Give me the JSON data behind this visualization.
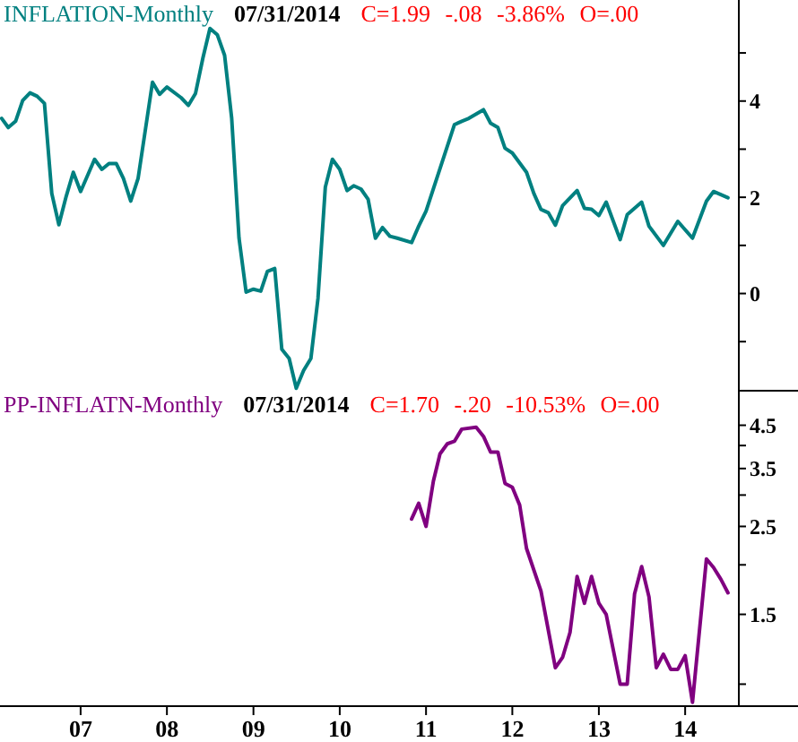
{
  "chart_data": [
    {
      "type": "line",
      "legend": "top left",
      "tick_labels": "y",
      "annotations": [
        "07/31/2014",
        "C=1.99 -.08 -3.86% O=.00"
      ],
      "xlim": [
        "2006-01-25",
        "2014-08-16"
      ],
      "ylim": [
        -2.02,
        6.1
      ],
      "yticks": [
        {
          "value": 5,
          "label": null
        },
        4,
        {
          "value": 3,
          "label": null
        },
        2,
        {
          "value": 1,
          "label": null
        },
        0,
        {
          "value": -1,
          "label": null
        }
      ],
      "series": [
        {
          "name": "INFLATION-Monthly",
          "color": "#008080",
          "x": [
            "2006-02",
            "2006-03",
            "2006-04",
            "2006-05",
            "2006-06",
            "2006-07",
            "2006-08",
            "2006-09",
            "2006-10",
            "2006-11",
            "2006-12",
            "2007-01",
            "2007-03",
            "2007-04",
            "2007-05",
            "2007-06",
            "2007-07",
            "2007-08",
            "2007-09",
            "2007-11",
            "2007-12",
            "2008-01",
            "2008-03",
            "2008-04",
            "2008-05",
            "2008-06",
            "2008-07",
            "2008-08",
            "2008-09",
            "2008-10",
            "2008-11",
            "2008-12",
            "2009-01",
            "2009-02",
            "2009-03",
            "2009-04",
            "2009-05",
            "2009-06",
            "2009-07",
            "2009-08",
            "2009-09",
            "2009-10",
            "2009-11",
            "2009-12",
            "2010-01",
            "2010-02",
            "2010-03",
            "2010-04",
            "2010-05",
            "2010-06",
            "2010-07",
            "2010-08",
            "2010-09",
            "2010-11",
            "2010-12",
            "2011-01",
            "2011-05",
            "2011-06",
            "2011-07",
            "2011-09",
            "2011-10",
            "2011-11",
            "2011-12",
            "2012-01",
            "2012-03",
            "2012-04",
            "2012-05",
            "2012-06",
            "2012-07",
            "2012-08",
            "2012-10",
            "2012-11",
            "2012-12",
            "2013-01",
            "2013-02",
            "2013-04",
            "2013-05",
            "2013-07",
            "2013-08",
            "2013-10",
            "2013-12",
            "2014-02",
            "2014-04",
            "2014-05",
            "2014-07"
          ],
          "values": [
            3.64,
            3.45,
            3.58,
            4.01,
            4.17,
            4.1,
            3.95,
            2.08,
            1.43,
            2.02,
            2.52,
            2.12,
            2.79,
            2.58,
            2.7,
            2.7,
            2.39,
            1.92,
            2.39,
            4.39,
            4.14,
            4.29,
            4.07,
            3.91,
            4.16,
            4.89,
            5.51,
            5.38,
            4.95,
            3.64,
            1.15,
            0.03,
            0.09,
            0.05,
            0.46,
            0.52,
            -1.16,
            -1.35,
            -1.97,
            -1.6,
            -1.35,
            -0.1,
            2.21,
            2.79,
            2.58,
            2.14,
            2.24,
            2.17,
            1.96,
            1.15,
            1.37,
            1.19,
            1.15,
            1.06,
            1.4,
            1.71,
            3.51,
            3.58,
            3.64,
            3.82,
            3.54,
            3.45,
            3.02,
            2.92,
            2.52,
            2.08,
            1.75,
            1.68,
            1.42,
            1.83,
            2.14,
            1.77,
            1.75,
            1.62,
            1.9,
            1.12,
            1.64,
            1.9,
            1.4,
            1.0,
            1.5,
            1.15,
            1.92,
            2.12,
            1.99
          ]
        }
      ]
    },
    {
      "type": "line",
      "legend": "top left",
      "log": "y",
      "annotations": [
        "07/31/2014",
        "C=1.70 -.20 -10.53% O=.00"
      ],
      "xlim": [
        "2006-01-25",
        "2014-08-16"
      ],
      "ylim": [
        0.88,
        5.5
      ],
      "xticks": [
        {
          "value": "2007-01-01",
          "label": "07"
        },
        {
          "value": "2008-01-01",
          "label": "08"
        },
        {
          "value": "2009-01-01",
          "label": "09"
        },
        {
          "value": "2010-01-01",
          "label": "10"
        },
        {
          "value": "2011-01-01",
          "label": "11"
        },
        {
          "value": "2012-01-01",
          "label": "12"
        },
        {
          "value": "2013-01-01",
          "label": "13"
        },
        {
          "value": "2014-01-01",
          "label": "14"
        }
      ],
      "yticks": [
        4.5,
        {
          "value": 4,
          "label": null
        },
        3.5,
        {
          "value": 3,
          "label": null
        },
        2.5,
        {
          "value": 2,
          "label": null
        },
        1.5,
        {
          "value": 1,
          "label": null
        }
      ],
      "series": [
        {
          "name": "PP-INFLATN-Monthly",
          "color": "#800080",
          "x": [
            "2010-11",
            "2010-12",
            "2011-01",
            "2011-02",
            "2011-03",
            "2011-04",
            "2011-05",
            "2011-06",
            "2011-08",
            "2011-09",
            "2011-10",
            "2011-11",
            "2011-12",
            "2012-01",
            "2012-02",
            "2012-03",
            "2012-05",
            "2012-07",
            "2012-08",
            "2012-09",
            "2012-10",
            "2012-11",
            "2012-12",
            "2013-01",
            "2013-02",
            "2013-04",
            "2013-05",
            "2013-06",
            "2013-07",
            "2013-08",
            "2013-09",
            "2013-10",
            "2013-11",
            "2013-12",
            "2014-01",
            "2014-02",
            "2014-04",
            "2014-05",
            "2014-06",
            "2014-07"
          ],
          "values": [
            2.61,
            2.86,
            2.5,
            3.25,
            3.81,
            4.04,
            4.1,
            4.4,
            4.45,
            4.22,
            3.85,
            3.85,
            3.21,
            3.14,
            2.83,
            2.2,
            1.72,
            1.1,
            1.17,
            1.35,
            1.87,
            1.6,
            1.87,
            1.6,
            1.5,
            1.0,
            1.0,
            1.69,
            1.98,
            1.66,
            1.1,
            1.19,
            1.09,
            1.09,
            1.18,
            0.9,
            2.07,
            1.97,
            1.84,
            1.7
          ]
        }
      ]
    }
  ]
}
